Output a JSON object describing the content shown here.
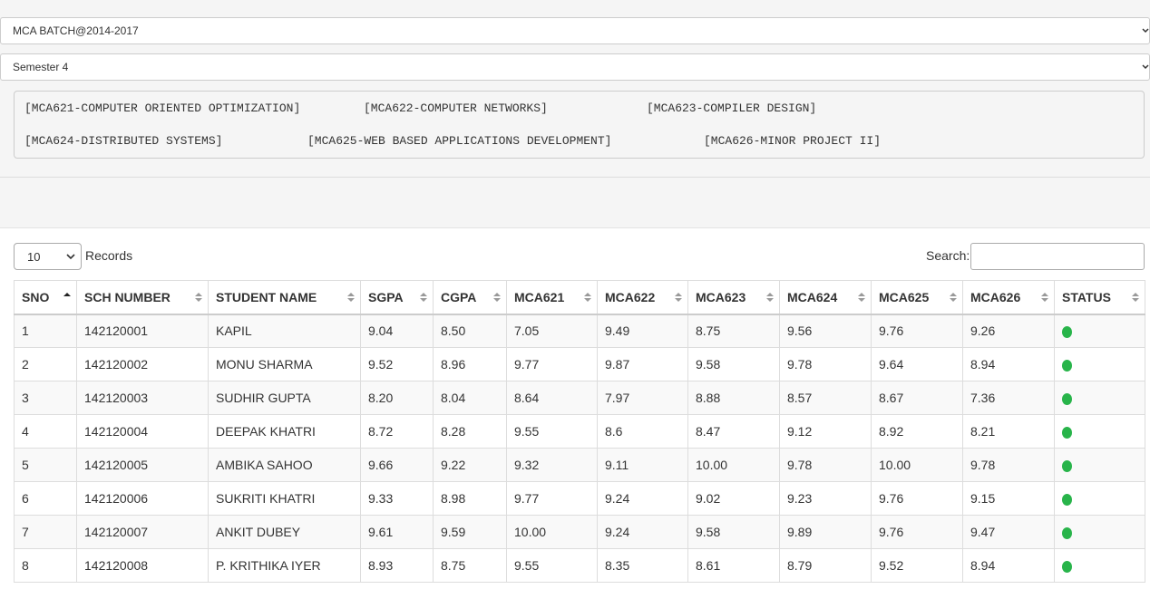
{
  "filters": {
    "batch": "MCA BATCH@2014-2017",
    "semester": "Semester 4"
  },
  "subjects": [
    "[MCA621-COMPUTER ORIENTED OPTIMIZATION]",
    "[MCA622-COMPUTER NETWORKS]",
    "[MCA623-COMPILER DESIGN]",
    "[MCA624-DISTRIBUTED SYSTEMS]",
    "[MCA625-WEB BASED APPLICATIONS DEVELOPMENT]",
    "[MCA626-MINOR PROJECT II]"
  ],
  "table_controls": {
    "page_length": "10",
    "records_label": "Records",
    "search_label": "Search:",
    "search_value": ""
  },
  "columns": [
    "SNO",
    "SCH NUMBER",
    "STUDENT NAME",
    "SGPA",
    "CGPA",
    "MCA621",
    "MCA622",
    "MCA623",
    "MCA624",
    "MCA625",
    "MCA626",
    "STATUS"
  ],
  "rows": [
    {
      "sno": "1",
      "sch": "142120001",
      "name": "KAPIL",
      "sgpa": "9.04",
      "cgpa": "8.50",
      "mca621": "7.05",
      "mca622": "9.49",
      "mca623": "8.75",
      "mca624": "9.56",
      "mca625": "9.76",
      "mca626": "9.26"
    },
    {
      "sno": "2",
      "sch": "142120002",
      "name": "MONU SHARMA",
      "sgpa": "9.52",
      "cgpa": "8.96",
      "mca621": "9.77",
      "mca622": "9.87",
      "mca623": "9.58",
      "mca624": "9.78",
      "mca625": "9.64",
      "mca626": "8.94"
    },
    {
      "sno": "3",
      "sch": "142120003",
      "name": "SUDHIR GUPTA",
      "sgpa": "8.20",
      "cgpa": "8.04",
      "mca621": "8.64",
      "mca622": "7.97",
      "mca623": "8.88",
      "mca624": "8.57",
      "mca625": "8.67",
      "mca626": "7.36"
    },
    {
      "sno": "4",
      "sch": "142120004",
      "name": "DEEPAK KHATRI",
      "sgpa": "8.72",
      "cgpa": "8.28",
      "mca621": "9.55",
      "mca622": "8.6",
      "mca623": "8.47",
      "mca624": "9.12",
      "mca625": "8.92",
      "mca626": "8.21"
    },
    {
      "sno": "5",
      "sch": "142120005",
      "name": "AMBIKA SAHOO",
      "sgpa": "9.66",
      "cgpa": "9.22",
      "mca621": "9.32",
      "mca622": "9.11",
      "mca623": "10.00",
      "mca624": "9.78",
      "mca625": "10.00",
      "mca626": "9.78"
    },
    {
      "sno": "6",
      "sch": "142120006",
      "name": "SUKRITI KHATRI",
      "sgpa": "9.33",
      "cgpa": "8.98",
      "mca621": "9.77",
      "mca622": "9.24",
      "mca623": "9.02",
      "mca624": "9.23",
      "mca625": "9.76",
      "mca626": "9.15"
    },
    {
      "sno": "7",
      "sch": "142120007",
      "name": "ANKIT DUBEY",
      "sgpa": "9.61",
      "cgpa": "9.59",
      "mca621": "10.00",
      "mca622": "9.24",
      "mca623": "9.58",
      "mca624": "9.89",
      "mca625": "9.76",
      "mca626": "9.47"
    },
    {
      "sno": "8",
      "sch": "142120008",
      "name": "P. KRITHIKA IYER",
      "sgpa": "8.93",
      "cgpa": "8.75",
      "mca621": "9.55",
      "mca622": "8.35",
      "mca623": "8.61",
      "mca624": "8.79",
      "mca625": "9.52",
      "mca626": "8.94"
    }
  ],
  "status_color": "#28b44a",
  "sort": {
    "column": "SNO",
    "direction": "ascending"
  }
}
